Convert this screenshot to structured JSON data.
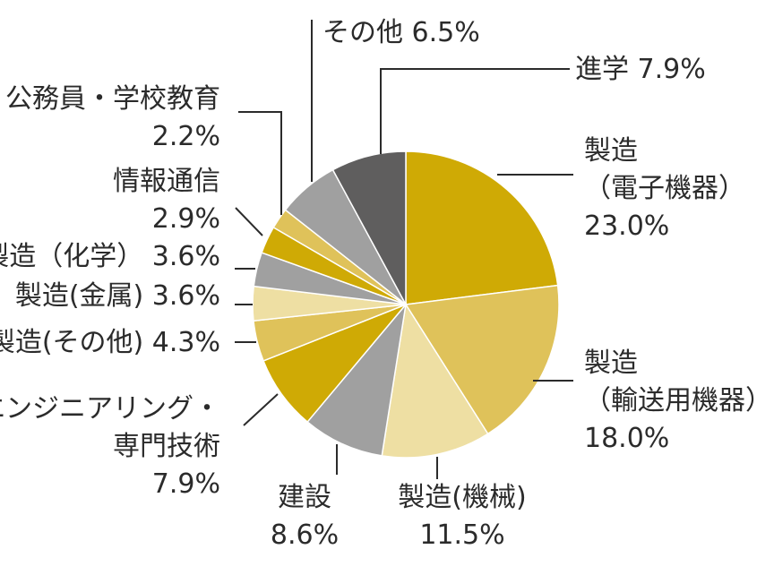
{
  "chart_data": {
    "type": "pie",
    "title": "",
    "start": "12 o'clock",
    "direction": "clockwise",
    "slices": [
      {
        "lines": [
          "製造",
          "（電子機器）"
        ],
        "value": 23.0,
        "value_label": "23.0%",
        "color": "#CFAA05"
      },
      {
        "lines": [
          "製造",
          "（輸送用機器）"
        ],
        "value": 18.0,
        "value_label": "18.0%",
        "color": "#DFC25A"
      },
      {
        "lines": [
          "製造(機械)"
        ],
        "value": 11.5,
        "value_label": "11.5%",
        "color": "#EEDFA3"
      },
      {
        "lines": [
          "建設"
        ],
        "value": 8.6,
        "value_label": "8.6%",
        "color": "#A0A0A0"
      },
      {
        "lines": [
          "エンジニアリング・",
          "専門技術"
        ],
        "value": 7.9,
        "value_label": "7.9%",
        "color": "#CFAA05"
      },
      {
        "lines": [
          "製造(その他)"
        ],
        "value": 4.3,
        "value_label": "4.3%",
        "color": "#DFC25A"
      },
      {
        "lines": [
          "製造(金属)"
        ],
        "value": 3.6,
        "value_label": "3.6%",
        "color": "#EEDFA3"
      },
      {
        "lines": [
          "製造（化学）"
        ],
        "value": 3.6,
        "value_label": "3.6%",
        "color": "#A0A0A0"
      },
      {
        "lines": [
          "情報通信"
        ],
        "value": 2.9,
        "value_label": "2.9%",
        "color": "#CFAA05"
      },
      {
        "lines": [
          "公務員・学校教育"
        ],
        "value": 2.2,
        "value_label": "2.2%",
        "color": "#DFC25A"
      },
      {
        "lines": [
          "その他"
        ],
        "value": 6.5,
        "value_label": "6.5%",
        "color": "#A0A0A0"
      },
      {
        "lines": [
          "進学"
        ],
        "value": 7.9,
        "value_label": "7.9%",
        "color": "#5F5E5E"
      }
    ]
  }
}
